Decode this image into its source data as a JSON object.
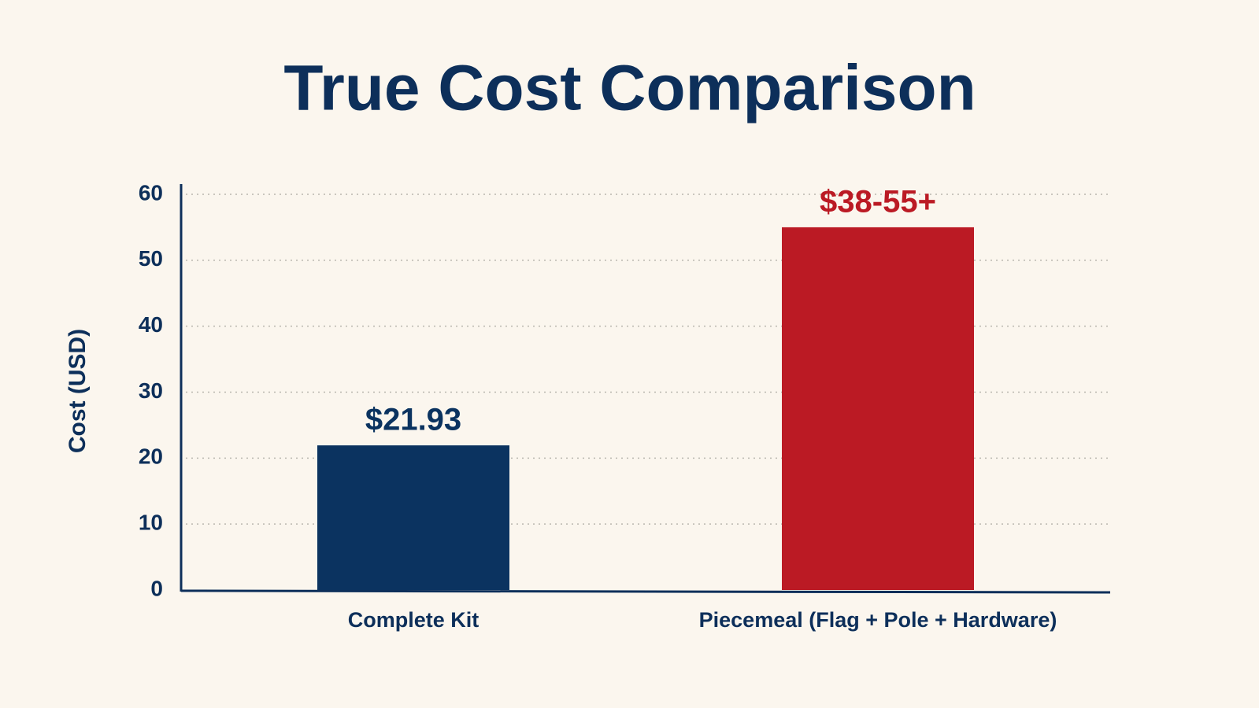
{
  "chart_data": {
    "type": "bar",
    "title": "True Cost Comparison",
    "y_label": "Cost (USD)",
    "categories": [
      "Complete Kit",
      "Piecemeal (Flag + Pole + Hardware)"
    ],
    "values": [
      21.93,
      55
    ],
    "value_labels": [
      "$21.93",
      "$38-55+"
    ],
    "colors": [
      "#0b3360",
      "#bb1a24"
    ],
    "ylim": [
      0,
      60
    ],
    "yticks": [
      0,
      10,
      20,
      30,
      40,
      50,
      60
    ],
    "grid": true
  }
}
